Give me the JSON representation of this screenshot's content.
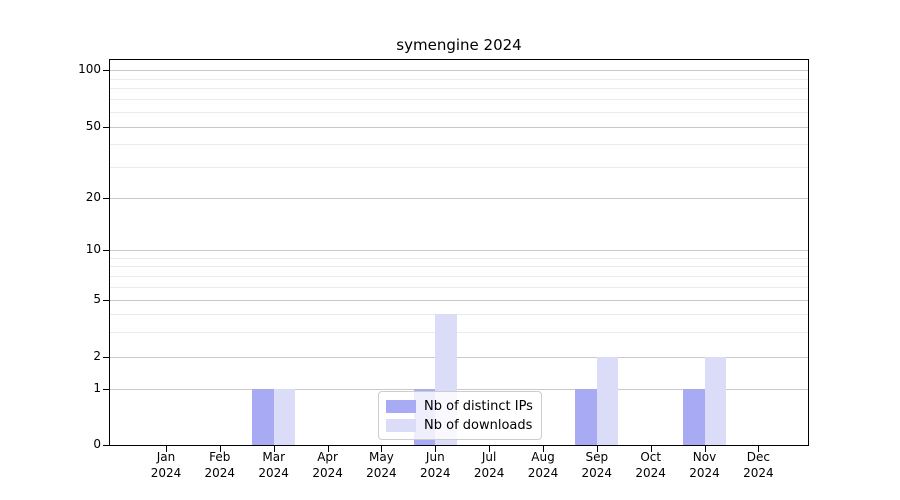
{
  "chart_data": {
    "type": "bar",
    "title": "symengine 2024",
    "categories": [
      {
        "month": "Jan",
        "year": "2024"
      },
      {
        "month": "Feb",
        "year": "2024"
      },
      {
        "month": "Mar",
        "year": "2024"
      },
      {
        "month": "Apr",
        "year": "2024"
      },
      {
        "month": "May",
        "year": "2024"
      },
      {
        "month": "Jun",
        "year": "2024"
      },
      {
        "month": "Jul",
        "year": "2024"
      },
      {
        "month": "Aug",
        "year": "2024"
      },
      {
        "month": "Sep",
        "year": "2024"
      },
      {
        "month": "Oct",
        "year": "2024"
      },
      {
        "month": "Nov",
        "year": "2024"
      },
      {
        "month": "Dec",
        "year": "2024"
      }
    ],
    "series": [
      {
        "name": "Nb of distinct IPs",
        "color": "#a8aaf3",
        "values": [
          0,
          0,
          1,
          0,
          0,
          1,
          0,
          0,
          1,
          0,
          1,
          0
        ]
      },
      {
        "name": "Nb of downloads",
        "color": "#dadcf8",
        "values": [
          0,
          0,
          1,
          0,
          0,
          4,
          0,
          0,
          2,
          0,
          2,
          0
        ]
      }
    ],
    "y_axis": {
      "scale": "symlog",
      "major_ticks": [
        0,
        1,
        2,
        5,
        10,
        20,
        50,
        100
      ],
      "minor_ticks": [
        3,
        4,
        6,
        7,
        8,
        9,
        30,
        40,
        60,
        70,
        80,
        90
      ],
      "range": [
        0,
        110
      ]
    },
    "x_axis": {
      "label_format": "month over year"
    },
    "legend": {
      "position": "lower center inside plot"
    },
    "grid": {
      "horizontal_major": true,
      "horizontal_minor": true
    }
  },
  "colors": {
    "major_grid": "#c9c9c9",
    "minor_grid": "#ebebeb",
    "axis": "#000000",
    "text": "#000000",
    "legend_border": "#cccccc"
  }
}
